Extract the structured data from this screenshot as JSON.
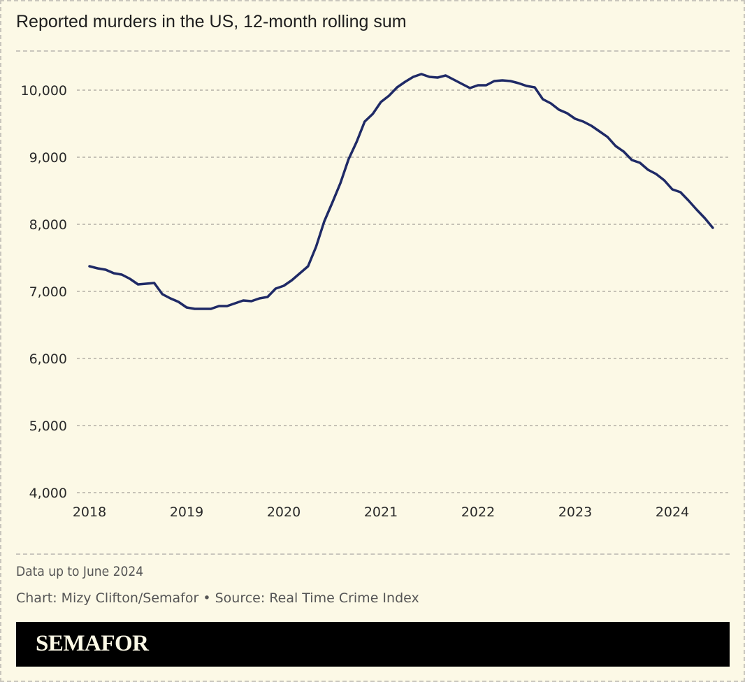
{
  "title": "Reported murders in the US, 12-month rolling sum",
  "note": "Data up to June 2024",
  "credit": "Chart: Mizy Clifton/Semafor • Source: Real Time Crime Index",
  "brand": "SEMAFOR",
  "colors": {
    "background": "#fcf9e6",
    "line": "#1f2a66",
    "grid": "#b3b0a5",
    "brandbar": "#000000",
    "brandtext": "#fcf9e6"
  },
  "chart_data": {
    "type": "line",
    "title": "Reported murders in the US, 12-month rolling sum",
    "xlabel": "",
    "ylabel": "",
    "ylim": [
      4000,
      10500
    ],
    "xlim": [
      2018.0,
      2024.65
    ],
    "grid": true,
    "yticks": [
      4000,
      5000,
      6000,
      7000,
      8000,
      9000,
      10000
    ],
    "ytick_labels": [
      "4,000",
      "5,000",
      "6,000",
      "7,000",
      "8,000",
      "9,000",
      "10,000"
    ],
    "xticks": [
      2018,
      2019,
      2020,
      2021,
      2022,
      2023,
      2024
    ],
    "xtick_labels": [
      "2018",
      "2019",
      "2020",
      "2021",
      "2022",
      "2023",
      "2024"
    ],
    "series": [
      {
        "name": "Reported murders (12-month rolling sum)",
        "start": "2018-01",
        "frequency": "monthly",
        "values": [
          7375,
          7344,
          7323,
          7271,
          7250,
          7188,
          7104,
          7115,
          7125,
          6958,
          6896,
          6844,
          6760,
          6740,
          6740,
          6740,
          6781,
          6781,
          6823,
          6865,
          6854,
          6896,
          6917,
          7042,
          7083,
          7167,
          7271,
          7375,
          7667,
          8042,
          8323,
          8615,
          8969,
          9229,
          9531,
          9646,
          9823,
          9917,
          10042,
          10125,
          10198,
          10240,
          10198,
          10188,
          10219,
          10156,
          10094,
          10031,
          10073,
          10073,
          10135,
          10146,
          10135,
          10104,
          10063,
          10042,
          9865,
          9802,
          9708,
          9656,
          9573,
          9531,
          9469,
          9385,
          9302,
          9167,
          9083,
          8958,
          8917,
          8813,
          8750,
          8656,
          8521,
          8479,
          8354,
          8219,
          8094,
          7948
        ]
      }
    ]
  }
}
